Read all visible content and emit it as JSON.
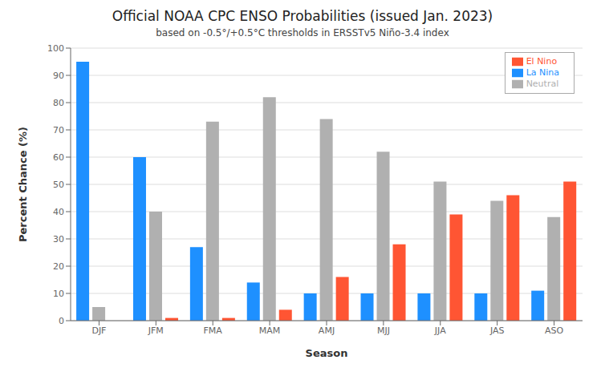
{
  "chart_data": {
    "type": "bar",
    "title": "Official NOAA CPC ENSO Probabilities (issued Jan. 2023)",
    "subtitle": "based on -0.5°/+0.5°C thresholds in ERSSTv5 Niño-3.4 index",
    "xlabel": "Season",
    "ylabel": "Percent Chance (%)",
    "categories": [
      "DJF",
      "JFM",
      "FMA",
      "MAM",
      "AMJ",
      "MJJ",
      "JJA",
      "JAS",
      "ASO"
    ],
    "series": [
      {
        "name": "La Nina",
        "color": "#1e90ff",
        "values": [
          95,
          60,
          27,
          14,
          10,
          10,
          10,
          10,
          11
        ]
      },
      {
        "name": "Neutral",
        "color": "#b0b0b0",
        "values": [
          5,
          40,
          73,
          82,
          74,
          62,
          51,
          44,
          38
        ]
      },
      {
        "name": "El Nino",
        "color": "#ff5533",
        "values": [
          0,
          1,
          1,
          4,
          16,
          28,
          39,
          46,
          51
        ]
      }
    ],
    "ylim": [
      0,
      100
    ],
    "yticks": [
      0,
      10,
      20,
      30,
      40,
      50,
      60,
      70,
      80,
      90,
      100
    ],
    "grid": true,
    "legend": "upper right"
  }
}
